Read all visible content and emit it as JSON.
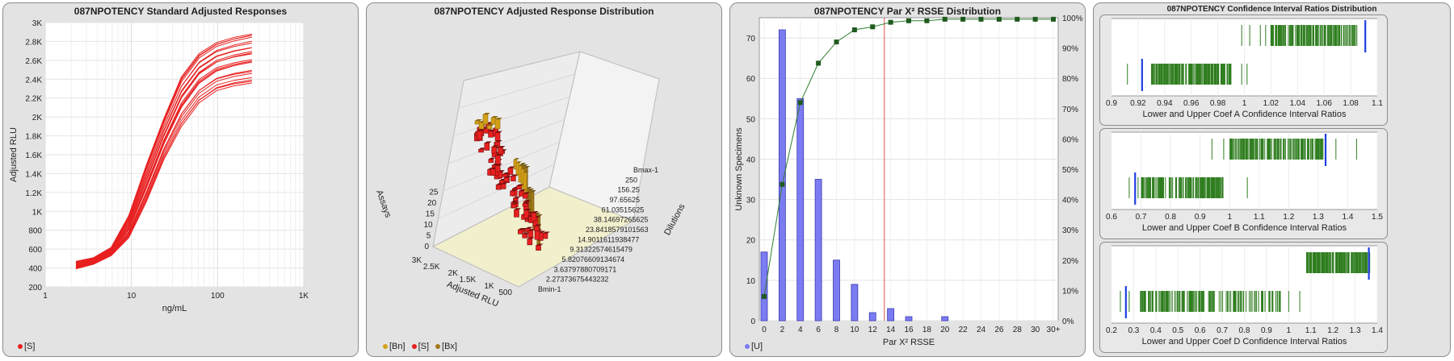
{
  "panels": {
    "p1": {
      "title": "087NPOTENCY Standard Adjusted Responses",
      "legend": [
        {
          "label": "[S]",
          "color": "#e82020"
        }
      ]
    },
    "p2": {
      "title": "087NPOTENCY Adjusted Response Distribution",
      "legend": [
        {
          "label": "[Bn]",
          "color": "#d4a017"
        },
        {
          "label": "[S]",
          "color": "#e82020"
        },
        {
          "label": "[Bx]",
          "color": "#a07818"
        }
      ]
    },
    "p3": {
      "title": "087NPOTENCY Par X² RSSE Distribution",
      "legend": [
        {
          "label": "[U]",
          "color": "#7b7bf2"
        }
      ]
    },
    "p4": {
      "title": "087NPOTENCY Confidence Interval Ratios Distribution"
    }
  },
  "chart_data": [
    {
      "id": "standard_curves",
      "type": "line",
      "title": "087NPOTENCY Standard Adjusted Responses",
      "xlabel": "ng/mL",
      "ylabel": "Adjusted RLU",
      "xscale": "log",
      "xlim": [
        1,
        1000
      ],
      "ylim": [
        200,
        3000
      ],
      "x_tick_labels": [
        "1",
        "10",
        "100",
        "1K"
      ],
      "y_tick_labels": [
        "200",
        "400",
        "600",
        "800",
        "1K",
        "1.2K",
        "1.4K",
        "1.6K",
        "1.8K",
        "2K",
        "2.2K",
        "2.4K",
        "2.6K",
        "2.8K",
        "3K"
      ],
      "grid": true,
      "color": "#e82020",
      "x": [
        2.27,
        3.64,
        5.82,
        9.31,
        14.9,
        23.84,
        38.15,
        61.04,
        97.66,
        156.25,
        250
      ],
      "series_low": [
        390,
        440,
        530,
        720,
        1100,
        1550,
        1900,
        2150,
        2280,
        2330,
        2360
      ],
      "series_high": [
        470,
        510,
        620,
        960,
        1500,
        2000,
        2450,
        2700,
        2820,
        2880,
        2920
      ],
      "series_count": 22
    },
    {
      "id": "response_distribution",
      "type": "bar3d",
      "title": "087NPOTENCY Adjusted Response Distribution",
      "xlabel": "Adjusted RLU",
      "ylabel": "Dilutions",
      "zlabel": "Assays",
      "x_tick_labels": [
        "3K",
        "2.5K",
        "2K",
        "1.5K",
        "1K",
        "500"
      ],
      "z_tick_labels": [
        "0",
        "5",
        "10",
        "15",
        "20",
        "25"
      ],
      "dilution_labels": [
        "Bmax-1",
        "250",
        "156.25",
        "97.65625",
        "61.03515625",
        "38.14697265625",
        "23.8418579101563",
        "14.9011611938477",
        "9.31322574615479",
        "5.82076609134674",
        "3.63797880709171",
        "2.27373675443232",
        "Bmin-1"
      ],
      "colors": {
        "Bn": "#d4a017",
        "S": "#e82020",
        "Bx": "#a07818"
      }
    },
    {
      "id": "rsse_distribution",
      "type": "bar",
      "title": "087NPOTENCY Par X² RSSE Distribution",
      "xlabel": "Par X² RSSE",
      "ylabel": "Unknown Specimens",
      "categories": [
        "0",
        "2",
        "4",
        "6",
        "8",
        "10",
        "12",
        "14",
        "16",
        "18",
        "20",
        "22",
        "24",
        "26",
        "28",
        "30",
        "30+"
      ],
      "values": [
        17,
        72,
        55,
        35,
        15,
        9,
        2,
        3,
        1,
        0,
        1,
        0,
        0,
        0,
        0,
        0,
        0
      ],
      "cumulative_pct": [
        8,
        45,
        72,
        85,
        92,
        96,
        97,
        98.5,
        99,
        99,
        99.5,
        99.5,
        99.5,
        99.5,
        99.5,
        99.5,
        99.5
      ],
      "ylim": [
        0,
        75
      ],
      "y_tick_labels": [
        "0",
        "10",
        "20",
        "30",
        "40",
        "50",
        "60",
        "70"
      ],
      "y2_tick_labels": [
        "0%",
        "10%",
        "20%",
        "30%",
        "40%",
        "50%",
        "60%",
        "70%",
        "80%",
        "90%",
        "100%"
      ],
      "threshold_x": 13.3,
      "bar_color": "#7b7bf2",
      "line_color": "#2f7d2f"
    },
    {
      "id": "ci_ratio_A",
      "type": "strip",
      "xlabel": "Lower and Upper Coef A Confidence Interval Ratios",
      "xlim": [
        0.9,
        1.1
      ],
      "x_tick_labels": [
        "0.9",
        "0.92",
        "0.94",
        "0.96",
        "0.98",
        "1",
        "1.02",
        "1.04",
        "1.06",
        "1.08",
        "1.1"
      ],
      "lower_range": [
        0.93,
        0.99
      ],
      "lower_outliers": [
        0.912,
        0.998,
        1.002
      ],
      "upper_range": [
        1.02,
        1.085
      ],
      "upper_outliers": [
        0.998,
        1.004,
        1.012,
        1.016
      ],
      "lower_marker": 0.923,
      "upper_marker": 1.091
    },
    {
      "id": "ci_ratio_B",
      "type": "strip",
      "xlabel": "Lower and Upper Coef B Confidence Interval Ratios",
      "xlim": [
        0.6,
        1.5
      ],
      "x_tick_labels": [
        "0.6",
        "0.7",
        "0.8",
        "0.9",
        "1",
        "1.1",
        "1.2",
        "1.3",
        "1.4",
        "1.5"
      ],
      "lower_range": [
        0.7,
        0.98
      ],
      "lower_outliers": [
        0.66,
        0.69,
        1.06
      ],
      "upper_range": [
        1.0,
        1.32
      ],
      "upper_outliers": [
        0.94,
        0.98,
        1.36,
        1.43
      ],
      "lower_marker": 0.68,
      "upper_marker": 1.325
    },
    {
      "id": "ci_ratio_D",
      "type": "strip",
      "xlabel": "Lower and Upper Coef D Confidence Interval Ratios",
      "xlim": [
        0.2,
        1.4
      ],
      "x_tick_labels": [
        "0.2",
        "0.3",
        "0.4",
        "0.5",
        "0.6",
        "0.7",
        "0.8",
        "0.9",
        "1",
        "1.1",
        "1.2",
        "1.3",
        "1.4"
      ],
      "lower_range": [
        0.33,
        0.97
      ],
      "lower_outliers": [
        0.24,
        0.28,
        1.0,
        1.05
      ],
      "upper_range": [
        1.08,
        1.37
      ],
      "upper_outliers": [],
      "lower_marker": 0.265,
      "upper_marker": 1.362
    }
  ]
}
